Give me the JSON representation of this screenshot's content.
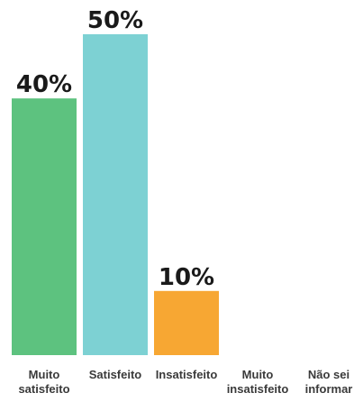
{
  "chart_data": {
    "type": "bar",
    "categories": [
      [
        "Muito",
        "satisfeito"
      ],
      [
        "Satisfeito"
      ],
      [
        "Insatisfeito"
      ],
      [
        "Muito",
        "insatisfeito"
      ],
      [
        "Não sei",
        "informar"
      ]
    ],
    "values": [
      40,
      50,
      10,
      0,
      0
    ],
    "value_labels": [
      "40%",
      "50%",
      "10%",
      "",
      ""
    ],
    "colors": [
      "#5dc27f",
      "#7dd1d3",
      "#f7a733",
      "#5dc27f",
      "#5dc27f"
    ],
    "ylim": [
      0,
      50
    ]
  }
}
